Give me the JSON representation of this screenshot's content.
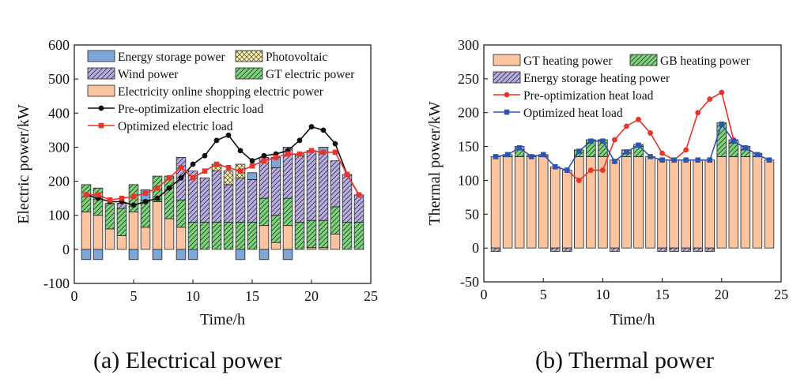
{
  "captions": {
    "left": "(a) Electrical power",
    "right": "(b) Thermal power"
  },
  "colors": {
    "storage": "#7ea6d8",
    "pv": "#fff1a8",
    "wind": "#b9aee0",
    "gt_elec": "#7fd07f",
    "shopping": "#f9c49f",
    "pre_elec": "#111111",
    "opt_elec": "#e8342c",
    "gt_heat": "#f9c49f",
    "gb_heat": "#7fd07f",
    "storage_heat": "#b9aee0",
    "pre_heat": "#e8342c",
    "opt_heat": "#2c55b0"
  },
  "chart_data": [
    {
      "type": "bar",
      "stacked": true,
      "title": "(a) Electrical power",
      "xlabel": "Time/h",
      "ylabel": "Electric power/kW",
      "xlim": [
        0,
        25
      ],
      "ylim": [
        -100,
        600
      ],
      "xticks": [
        0,
        5,
        10,
        15,
        20,
        25
      ],
      "yticks": [
        -100,
        0,
        100,
        200,
        300,
        400,
        500,
        600
      ],
      "x": [
        1,
        2,
        3,
        4,
        5,
        6,
        7,
        8,
        9,
        10,
        11,
        12,
        13,
        14,
        15,
        16,
        17,
        18,
        19,
        20,
        21,
        22,
        23,
        24
      ],
      "bar_series": [
        {
          "key": "shopping",
          "name": "Electricity online shopping electric power",
          "color_key": "shopping",
          "values": [
            110,
            100,
            60,
            40,
            110,
            65,
            140,
            90,
            65,
            0,
            0,
            0,
            0,
            0,
            0,
            70,
            20,
            70,
            0,
            5,
            5,
            45,
            0,
            0
          ]
        },
        {
          "key": "gt",
          "name": "GT electric power",
          "color_key": "gt_elec",
          "values": [
            80,
            80,
            75,
            80,
            80,
            80,
            75,
            125,
            80,
            80,
            80,
            80,
            80,
            80,
            80,
            80,
            80,
            80,
            80,
            80,
            80,
            80,
            80,
            80
          ]
        },
        {
          "key": "wind",
          "name": "Wind power",
          "color_key": "wind",
          "values": [
            0,
            0,
            0,
            15,
            0,
            0,
            0,
            0,
            125,
            150,
            130,
            150,
            110,
            130,
            125,
            120,
            140,
            150,
            195,
            205,
            200,
            135,
            140,
            80
          ]
        },
        {
          "key": "pv",
          "name": "Photovoltaic",
          "color_key": "pv",
          "values": [
            0,
            0,
            0,
            0,
            0,
            0,
            0,
            0,
            0,
            0,
            0,
            20,
            40,
            40,
            0,
            0,
            0,
            0,
            5,
            0,
            0,
            0,
            0,
            0
          ]
        },
        {
          "key": "storage",
          "name": "Energy storage power",
          "color_key": "storage",
          "values": [
            -30,
            -30,
            0,
            0,
            -30,
            30,
            -30,
            0,
            -30,
            -30,
            0,
            0,
            0,
            -30,
            20,
            -30,
            30,
            -30,
            0,
            0,
            15,
            0,
            0,
            0
          ]
        }
      ],
      "line_series": [
        {
          "name": "Pre-optimization electric load",
          "color_key": "pre_elec",
          "marker": "circle",
          "values": [
            160,
            150,
            140,
            140,
            130,
            140,
            150,
            180,
            210,
            250,
            275,
            320,
            335,
            290,
            260,
            275,
            280,
            290,
            320,
            360,
            350,
            310,
            220,
            160
          ]
        },
        {
          "name": "Optimized electric load",
          "color_key": "opt_elec",
          "marker": "square",
          "values": [
            160,
            160,
            145,
            150,
            155,
            165,
            180,
            210,
            240,
            210,
            230,
            250,
            240,
            230,
            245,
            260,
            270,
            280,
            280,
            290,
            285,
            285,
            220,
            160
          ]
        }
      ],
      "legend": [
        {
          "label": "Energy storage power",
          "kind": "patch",
          "color_key": "storage",
          "pattern": "none"
        },
        {
          "label": "Photovoltaic",
          "kind": "patch",
          "color_key": "pv",
          "pattern": "cross"
        },
        {
          "label": "Wind power",
          "kind": "patch",
          "color_key": "wind",
          "pattern": "diag"
        },
        {
          "label": "GT electric power",
          "kind": "patch",
          "color_key": "gt_elec",
          "pattern": "diag"
        },
        {
          "label": "Electricity online shopping electric power",
          "kind": "patch",
          "color_key": "shopping",
          "pattern": "none"
        },
        {
          "label": "Pre-optimization electric load",
          "kind": "line",
          "color_key": "pre_elec",
          "marker": "circle"
        },
        {
          "label": "Optimized electric load",
          "kind": "line",
          "color_key": "opt_elec",
          "marker": "square"
        }
      ]
    },
    {
      "type": "bar",
      "stacked": true,
      "title": "(b) Thermal power",
      "xlabel": "Time/h",
      "ylabel": "Thermal power/kW",
      "xlim": [
        0,
        25
      ],
      "ylim": [
        -50,
        300
      ],
      "xticks": [
        0,
        5,
        10,
        15,
        20,
        25
      ],
      "yticks": [
        -50,
        0,
        50,
        100,
        150,
        200,
        250,
        300
      ],
      "x": [
        1,
        2,
        3,
        4,
        5,
        6,
        7,
        8,
        9,
        10,
        11,
        12,
        13,
        14,
        15,
        16,
        17,
        18,
        19,
        20,
        21,
        22,
        23,
        24
      ],
      "bar_series": [
        {
          "key": "gt_heat",
          "name": "GT heating power",
          "color_key": "gt_heat",
          "values": [
            135,
            135,
            135,
            135,
            135,
            120,
            115,
            135,
            135,
            135,
            130,
            135,
            135,
            135,
            130,
            130,
            130,
            130,
            130,
            135,
            135,
            135,
            135,
            130
          ]
        },
        {
          "key": "gb_heat",
          "name": "GB heating power",
          "color_key": "gb_heat",
          "values": [
            0,
            0,
            10,
            0,
            0,
            0,
            0,
            10,
            25,
            25,
            0,
            5,
            15,
            0,
            0,
            0,
            0,
            0,
            0,
            50,
            20,
            10,
            0,
            0
          ]
        },
        {
          "key": "storage_heat",
          "name": "Energy storage heating power",
          "color_key": "storage_heat",
          "values": [
            -5,
            3,
            5,
            2,
            3,
            -5,
            -5,
            0,
            0,
            0,
            -5,
            5,
            3,
            0,
            -5,
            -5,
            -5,
            -5,
            -5,
            0,
            5,
            5,
            5,
            0
          ]
        }
      ],
      "line_series": [
        {
          "name": "Pre-optimization heat load",
          "color_key": "pre_heat",
          "marker": "circle",
          "values": [
            null,
            null,
            null,
            null,
            null,
            null,
            115,
            100,
            115,
            115,
            160,
            180,
            190,
            170,
            140,
            130,
            145,
            200,
            220,
            230,
            160,
            null,
            null,
            null
          ]
        },
        {
          "name": "Optimized heat load",
          "color_key": "opt_heat",
          "marker": "square",
          "values": [
            135,
            138,
            148,
            135,
            138,
            120,
            115,
            143,
            158,
            158,
            128,
            142,
            152,
            135,
            130,
            130,
            130,
            130,
            130,
            183,
            158,
            148,
            138,
            130
          ]
        }
      ],
      "legend": [
        {
          "label": "GT heating power",
          "kind": "patch",
          "color_key": "gt_heat",
          "pattern": "none"
        },
        {
          "label": "GB heating power",
          "kind": "patch",
          "color_key": "gb_heat",
          "pattern": "diag"
        },
        {
          "label": "Energy storage heating power",
          "kind": "patch",
          "color_key": "storage_heat",
          "pattern": "diag"
        },
        {
          "label": "Pre-optimization heat load",
          "kind": "line",
          "color_key": "pre_heat",
          "marker": "circle"
        },
        {
          "label": "Optimized heat load",
          "kind": "line",
          "color_key": "opt_heat",
          "marker": "square"
        }
      ]
    }
  ]
}
